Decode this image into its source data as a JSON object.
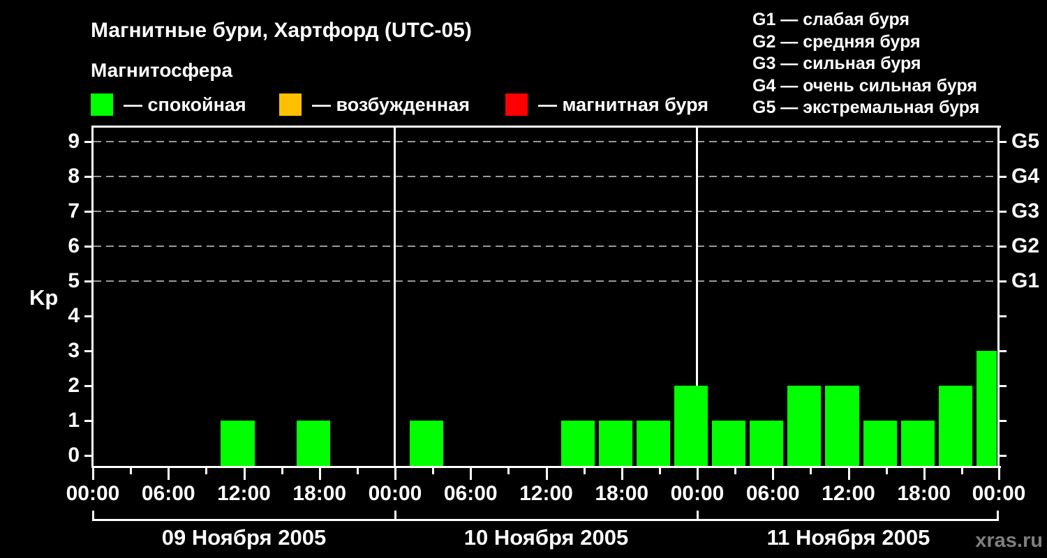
{
  "title": "Магнитные бури, Хартфорд (UTC-05)",
  "subtitle": "Магнитосфера",
  "watermark": "xras.ru",
  "colors": {
    "background": "#000000",
    "quiet": "#00FF00",
    "excited": "#FFC000",
    "storm": "#FF0000",
    "grid": "#999999",
    "axis": "#FFFFFF",
    "watermark": "#7F7F7F"
  },
  "legend": [
    {
      "color_key": "quiet",
      "label": "— спокойная"
    },
    {
      "color_key": "excited",
      "label": "— возбужденная"
    },
    {
      "color_key": "storm",
      "label": "— магнитная буря"
    }
  ],
  "g_legend": [
    "G1 — слабая буря",
    "G2 — средняя буря",
    "G3 — сильная буря",
    "G4 — очень сильная буря",
    "G5 — экстремальная буря"
  ],
  "chart_data": {
    "type": "bar",
    "title": "Магнитные бури, Хартфорд (UTC-05)",
    "xlabel": "",
    "ylabel": "Kp",
    "ylim": [
      0,
      9
    ],
    "yticks": [
      0,
      1,
      2,
      3,
      4,
      5,
      6,
      7,
      8,
      9
    ],
    "gridlines_at": [
      5,
      6,
      7,
      8,
      9
    ],
    "grid": "dashed horizontal at Kp 5-9",
    "legend_position": "top",
    "right_axis": [
      {
        "kp": 5,
        "label": "G1"
      },
      {
        "kp": 6,
        "label": "G2"
      },
      {
        "kp": 7,
        "label": "G3"
      },
      {
        "kp": 8,
        "label": "G4"
      },
      {
        "kp": 9,
        "label": "G5"
      }
    ],
    "time_labels": [
      "00:00",
      "06:00",
      "12:00",
      "18:00"
    ],
    "time_tick_step_hours": 3,
    "time_label_step_hours": 6,
    "slot_start_hour": 1,
    "slot_length_hours": 3,
    "severity_thresholds": {
      "quiet_max": 3,
      "excited_max": 4
    },
    "days": [
      {
        "date": "09 Ноября 2005",
        "kp_values": [
          0,
          0,
          0,
          1,
          0,
          1,
          0,
          0
        ]
      },
      {
        "date": "10 Ноября 2005",
        "kp_values": [
          1,
          0,
          0,
          0,
          1,
          1,
          1,
          2
        ]
      },
      {
        "date": "11 Ноября 2005",
        "kp_values": [
          1,
          1,
          2,
          2,
          1,
          1,
          2,
          3
        ]
      }
    ]
  }
}
